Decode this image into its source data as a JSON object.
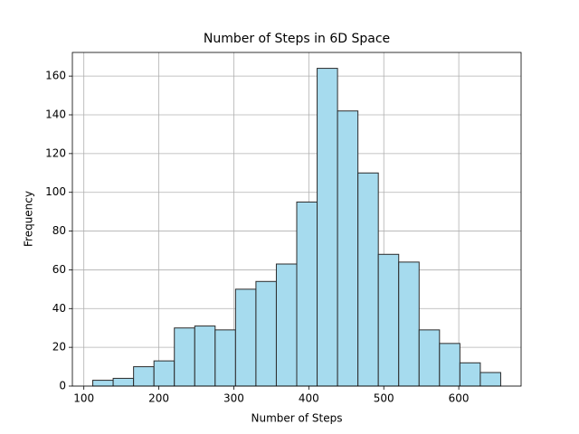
{
  "chart_data": {
    "type": "histogram",
    "title": "Number of Steps in 6D Space",
    "x_label": "Number of Steps",
    "y_label": "Frequency",
    "bins": [
      111.9,
      139.1,
      166.3,
      193.5,
      220.7,
      247.9,
      275.1,
      302.3,
      329.5,
      356.7,
      383.9,
      411.1,
      438.3,
      465.5,
      492.7,
      519.9,
      547.1,
      574.3,
      601.5,
      628.7,
      655.9
    ],
    "values": [
      3,
      4,
      10,
      13,
      30,
      31,
      29,
      50,
      54,
      63,
      95,
      164,
      142,
      110,
      68,
      64,
      29,
      22,
      12,
      7
    ],
    "color": "#a6dbee",
    "xlim": [
      84.7,
      683.1
    ],
    "xticks": [
      100,
      200,
      300,
      400,
      500,
      600
    ],
    "ylim": [
      0,
      172.2
    ],
    "yticks": [
      0,
      20,
      40,
      60,
      80,
      100,
      120,
      140,
      160
    ],
    "grid": true
  }
}
